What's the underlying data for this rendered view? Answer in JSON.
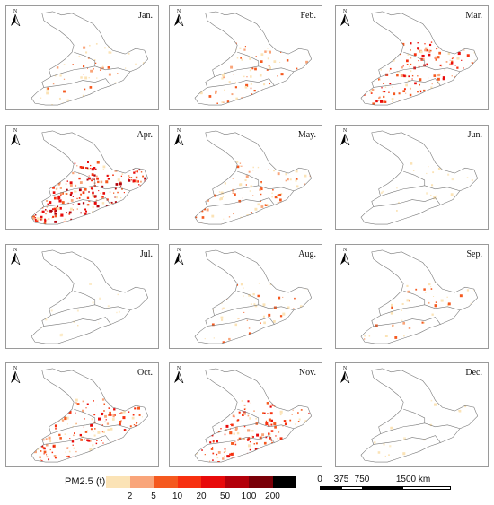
{
  "panels": [
    {
      "month": "Jan.",
      "intensity": "low"
    },
    {
      "month": "Feb.",
      "intensity": "medium"
    },
    {
      "month": "Mar.",
      "intensity": "high"
    },
    {
      "month": "Apr.",
      "intensity": "very-high"
    },
    {
      "month": "May.",
      "intensity": "medium"
    },
    {
      "month": "Jun.",
      "intensity": "very-low"
    },
    {
      "month": "Jul.",
      "intensity": "very-low"
    },
    {
      "month": "Aug.",
      "intensity": "low"
    },
    {
      "month": "Sep.",
      "intensity": "low"
    },
    {
      "month": "Oct.",
      "intensity": "high"
    },
    {
      "month": "Nov.",
      "intensity": "high"
    },
    {
      "month": "Dec.",
      "intensity": "very-low"
    }
  ],
  "north_arrow_label": "N",
  "legend": {
    "title": "PM2.5 (t)",
    "ticks": [
      "2",
      "5",
      "10",
      "20",
      "50",
      "100",
      "200"
    ],
    "colors": [
      "#fbe3b6",
      "#f9a57a",
      "#f5591f",
      "#f73010",
      "#e80a0a",
      "#b3000a",
      "#7a0008",
      "#000000"
    ]
  },
  "scale": {
    "labels": [
      "0",
      "375",
      "750",
      "1500 km"
    ]
  }
}
